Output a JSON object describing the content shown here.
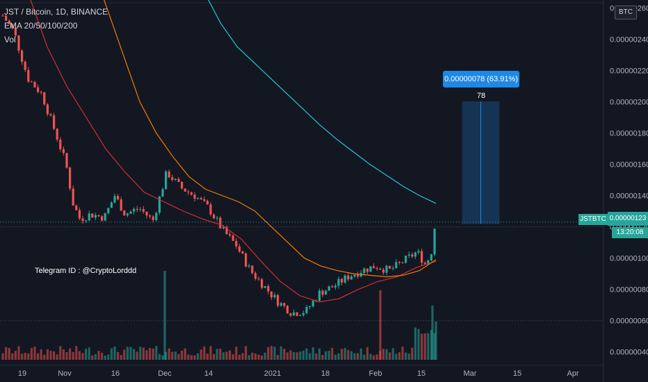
{
  "header": {
    "symbol_line": "JST / Bitcoin, 1D, BINANCE",
    "ema_line": "EMA 20/50/100/200",
    "vol_line": "Vol"
  },
  "axis_currency": "BTC",
  "symbol_tag": "JSTBTC",
  "last_price": "0.00000123",
  "countdown": "13:20:08",
  "measure_label": "0.00000078 (63.91%) 78",
  "watermark": "Telegram ID : @CryptoLorddd",
  "colors": {
    "up": "#26a69a",
    "down": "#ef5350",
    "ema20": "#d32f2f",
    "ema50": "#f57c00",
    "ema200": "#26c6da",
    "measure": "#1e88e5"
  },
  "chart_data": {
    "type": "candlestick",
    "ylim": [
      3.5e-07,
      2.65e-06
    ],
    "price_ticks": [
      "0.00000260",
      "0.00000240",
      "0.00000220",
      "0.00000200",
      "0.00000180",
      "0.00000160",
      "0.00000140",
      "0.00000120",
      "0.00000100",
      "0.00000080",
      "0.00000060",
      "0.00000040"
    ],
    "date_ticks": [
      "19",
      "Nov",
      "16",
      "Dec",
      "14",
      "2021",
      "18",
      "Feb",
      "15",
      "Mar",
      "15",
      "Apr"
    ],
    "measure": {
      "from": 1.22e-06,
      "to": 2e-06,
      "change": "0.00000078",
      "percent": "63.91%",
      "bars": 78
    },
    "ema20": [
      2.7e-06,
      2.35e-06,
      2.1e-06,
      1.9e-06,
      1.7e-06,
      1.55e-06,
      1.42e-06,
      1.36e-06,
      1.3e-06,
      1.25e-06,
      1.21e-06,
      1.12e-06,
      9.8e-07,
      8.5e-07,
      7.6e-07,
      7.2e-07,
      7.4e-07,
      8e-07,
      8.5e-07,
      8.8e-07,
      9.4e-07,
      9.8e-07
    ],
    "ema50": [
      2.9e-06,
      2.6e-06,
      2.3e-06,
      2e-06,
      1.8e-06,
      1.65e-06,
      1.52e-06,
      1.44e-06,
      1.4e-06,
      1.36e-06,
      1.3e-06,
      1.2e-06,
      1.1e-06,
      1e-06,
      9.5e-07,
      9.2e-07,
      9e-07,
      8.9e-07,
      8.8e-07,
      8.9e-07,
      9.2e-07,
      9.9e-07
    ],
    "ema200": [
      3e-06,
      2.7e-06,
      2.5e-06,
      2.35e-06,
      2.25e-06,
      2.15e-06,
      2.05e-06,
      1.95e-06,
      1.85e-06,
      1.76e-06,
      1.68e-06,
      1.6e-06,
      1.53e-06,
      1.46e-06,
      1.4e-06,
      1.35e-06
    ]
  }
}
